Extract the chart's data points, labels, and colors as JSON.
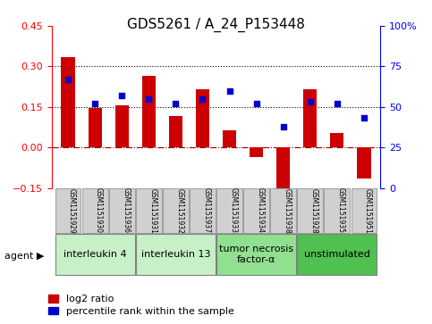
{
  "title": "GDS5261 / A_24_P153448",
  "samples": [
    "GSM1151929",
    "GSM1151930",
    "GSM1151936",
    "GSM1151931",
    "GSM1151932",
    "GSM1151937",
    "GSM1151933",
    "GSM1151934",
    "GSM1151938",
    "GSM1151928",
    "GSM1151935",
    "GSM1151951"
  ],
  "log2_ratio": [
    0.335,
    0.145,
    0.155,
    0.265,
    0.115,
    0.215,
    0.065,
    -0.035,
    -0.2,
    0.215,
    0.055,
    -0.115
  ],
  "percentile": [
    67,
    52,
    57,
    55,
    52,
    55,
    60,
    52,
    38,
    53,
    52,
    43
  ],
  "agents": [
    {
      "label": "interleukin 4",
      "indices": [
        0,
        1,
        2
      ],
      "color": "#c8f0c8"
    },
    {
      "label": "interleukin 13",
      "indices": [
        3,
        4,
        5
      ],
      "color": "#90e090"
    },
    {
      "label": "tumor necrosis\nfactor-α",
      "indices": [
        6,
        7,
        8
      ],
      "color": "#90e090"
    },
    {
      "label": "unstimulated",
      "indices": [
        9,
        10,
        11
      ],
      "color": "#50c050"
    }
  ],
  "ylim_left": [
    -0.15,
    0.45
  ],
  "ylim_right": [
    0,
    100
  ],
  "yticks_left": [
    -0.15,
    0,
    0.15,
    0.3,
    0.45
  ],
  "yticks_right": [
    0,
    25,
    50,
    75,
    100
  ],
  "bar_color": "#cc0000",
  "dot_color": "#0000cc",
  "hline_dotted_vals": [
    0.15,
    0.3
  ],
  "hline_dashed_val": 0.0,
  "bar_width": 0.5,
  "xlabel_fontsize": 7,
  "title_fontsize": 11,
  "tick_fontsize": 8,
  "legend_fontsize": 8,
  "agent_fontsize": 8,
  "agent_label_fontsize": 8,
  "background_color": "#ffffff",
  "agent_label": "agent"
}
